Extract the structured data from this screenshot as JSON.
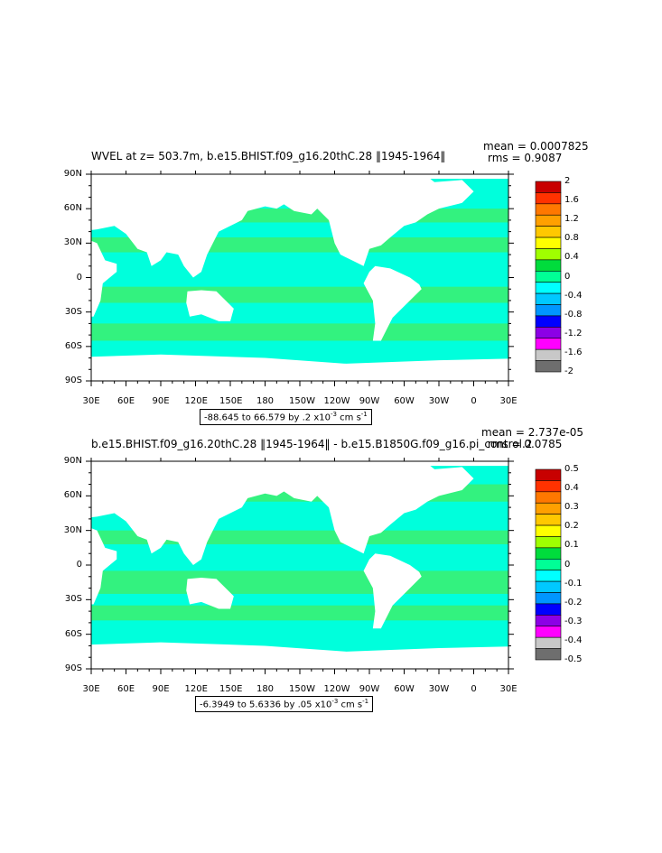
{
  "chart_data": [
    {
      "type": "heatmap",
      "title": "WVEL at z= 503.7m, b.e15.BHIST.f09_g16.20thC.28 ‖1945-1964‖",
      "stats": {
        "mean": "mean = 0.0007825",
        "rms": "rms = 0.9087"
      },
      "range_text": "-88.645 to 66.579 by .2 x10",
      "range_exp": "-3",
      "range_unit": " cm s",
      "range_unit_exp": "-1",
      "x_ticks": [
        "30E",
        "60E",
        "90E",
        "120E",
        "150E",
        "180",
        "150W",
        "120W",
        "90W",
        "60W",
        "30W",
        "0",
        "30E"
      ],
      "y_ticks": [
        "90N",
        "60N",
        "30N",
        "0",
        "30S",
        "60S",
        "90S"
      ],
      "colorbar_labels": [
        "2",
        "1.6",
        "1.2",
        "0.8",
        "0.4",
        "0",
        "-0.4",
        "-0.8",
        "-1.2",
        "-1.6",
        "-2"
      ],
      "colorbar_colors": [
        "#c80000",
        "#ff3200",
        "#ff7800",
        "#ffa000",
        "#ffc800",
        "#ffff00",
        "#a0ff00",
        "#00dc3c",
        "#00ff96",
        "#00ffff",
        "#00c8ff",
        "#0096ff",
        "#0000ff",
        "#8c00e6",
        "#ff00ff",
        "#c8c8c8",
        "#6e6e6e"
      ],
      "field_colors": {
        "main": "#00ffdc",
        "secondary": "#3cf06e",
        "land": "#ffffff"
      }
    },
    {
      "type": "heatmap",
      "title": "b.e15.BHIST.f09_g16.20thC.28 ‖1945-1964‖ - b.e15.B1850G.f09_g16.pi_control.2",
      "stats": {
        "mean": "mean = 2.737e-05",
        "rms": "rms = 0.0785"
      },
      "range_text": "-6.3949 to 5.6336 by .05 x10",
      "range_exp": "-3",
      "range_unit": " cm s",
      "range_unit_exp": "-1",
      "x_ticks": [
        "30E",
        "60E",
        "90E",
        "120E",
        "150E",
        "180",
        "150W",
        "120W",
        "90W",
        "60W",
        "30W",
        "0",
        "30E"
      ],
      "y_ticks": [
        "90N",
        "60N",
        "30N",
        "0",
        "30S",
        "60S",
        "90S"
      ],
      "colorbar_labels": [
        "0.5",
        "0.4",
        "0.3",
        "0.2",
        "0.1",
        "0",
        "-0.1",
        "-0.2",
        "-0.3",
        "-0.4",
        "-0.5"
      ],
      "colorbar_colors": [
        "#c80000",
        "#ff3200",
        "#ff7800",
        "#ffa000",
        "#ffc800",
        "#ffff00",
        "#a0ff00",
        "#00dc3c",
        "#00ff96",
        "#00ffff",
        "#00c8ff",
        "#0096ff",
        "#0000ff",
        "#8c00e6",
        "#ff00ff",
        "#c8c8c8",
        "#6e6e6e"
      ],
      "field_colors": {
        "main": "#00ffdc",
        "secondary": "#3cf06e",
        "land": "#ffffff"
      }
    }
  ]
}
